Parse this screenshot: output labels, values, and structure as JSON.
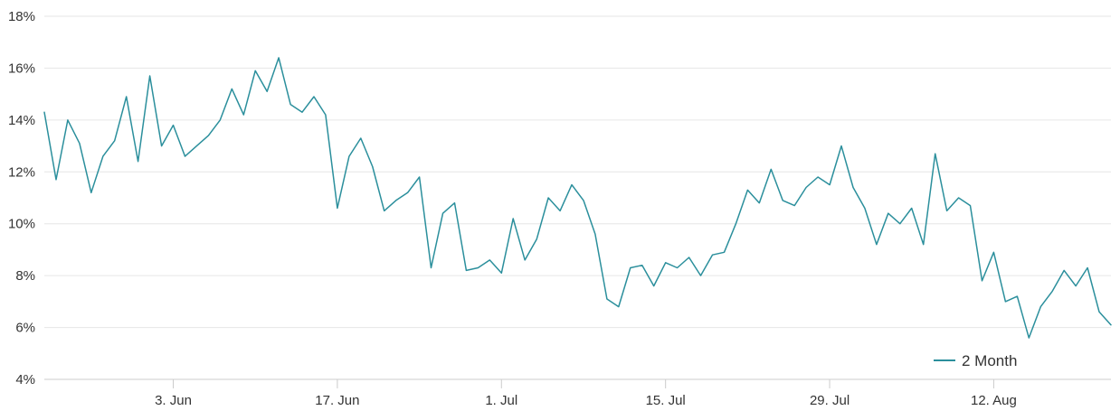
{
  "chart_data": {
    "type": "line",
    "title": "",
    "xlabel": "",
    "ylabel": "",
    "x_start": "2024-05-23",
    "x_end": "2024-08-22",
    "ylim": [
      4,
      18
    ],
    "y_ticks": [
      "4%",
      "6%",
      "8%",
      "10%",
      "12%",
      "14%",
      "16%",
      "18%"
    ],
    "x_ticks": [
      {
        "date": "2024-06-03",
        "label": "3. Jun"
      },
      {
        "date": "2024-06-17",
        "label": "17. Jun"
      },
      {
        "date": "2024-07-01",
        "label": "1. Jul"
      },
      {
        "date": "2024-07-15",
        "label": "15. Jul"
      },
      {
        "date": "2024-07-29",
        "label": "29. Jul"
      },
      {
        "date": "2024-08-12",
        "label": "12. Aug"
      }
    ],
    "grid": true,
    "legend_position": "bottom-right",
    "series": [
      {
        "name": "2 Month",
        "color": "#2b8f9c",
        "points": [
          [
            "2024-05-23",
            14.3
          ],
          [
            "2024-05-24",
            11.7
          ],
          [
            "2024-05-25",
            14.0
          ],
          [
            "2024-05-26",
            13.1
          ],
          [
            "2024-05-27",
            11.2
          ],
          [
            "2024-05-28",
            12.6
          ],
          [
            "2024-05-29",
            13.2
          ],
          [
            "2024-05-30",
            14.9
          ],
          [
            "2024-05-31",
            12.4
          ],
          [
            "2024-06-01",
            15.7
          ],
          [
            "2024-06-02",
            13.0
          ],
          [
            "2024-06-03",
            13.8
          ],
          [
            "2024-06-04",
            12.6
          ],
          [
            "2024-06-05",
            13.0
          ],
          [
            "2024-06-06",
            13.4
          ],
          [
            "2024-06-07",
            14.0
          ],
          [
            "2024-06-08",
            15.2
          ],
          [
            "2024-06-09",
            14.2
          ],
          [
            "2024-06-10",
            15.9
          ],
          [
            "2024-06-11",
            15.1
          ],
          [
            "2024-06-12",
            16.4
          ],
          [
            "2024-06-13",
            14.6
          ],
          [
            "2024-06-14",
            14.3
          ],
          [
            "2024-06-15",
            14.9
          ],
          [
            "2024-06-16",
            14.2
          ],
          [
            "2024-06-17",
            10.6
          ],
          [
            "2024-06-18",
            12.6
          ],
          [
            "2024-06-19",
            13.3
          ],
          [
            "2024-06-20",
            12.2
          ],
          [
            "2024-06-21",
            10.5
          ],
          [
            "2024-06-22",
            10.9
          ],
          [
            "2024-06-23",
            11.2
          ],
          [
            "2024-06-24",
            11.8
          ],
          [
            "2024-06-25",
            8.3
          ],
          [
            "2024-06-26",
            10.4
          ],
          [
            "2024-06-27",
            10.8
          ],
          [
            "2024-06-28",
            8.2
          ],
          [
            "2024-06-29",
            8.3
          ],
          [
            "2024-06-30",
            8.6
          ],
          [
            "2024-07-01",
            8.1
          ],
          [
            "2024-07-02",
            10.2
          ],
          [
            "2024-07-03",
            8.6
          ],
          [
            "2024-07-04",
            9.4
          ],
          [
            "2024-07-05",
            11.0
          ],
          [
            "2024-07-06",
            10.5
          ],
          [
            "2024-07-07",
            11.5
          ],
          [
            "2024-07-08",
            10.9
          ],
          [
            "2024-07-09",
            9.6
          ],
          [
            "2024-07-10",
            7.1
          ],
          [
            "2024-07-11",
            6.8
          ],
          [
            "2024-07-12",
            8.3
          ],
          [
            "2024-07-13",
            8.4
          ],
          [
            "2024-07-14",
            7.6
          ],
          [
            "2024-07-15",
            8.5
          ],
          [
            "2024-07-16",
            8.3
          ],
          [
            "2024-07-17",
            8.7
          ],
          [
            "2024-07-18",
            8.0
          ],
          [
            "2024-07-19",
            8.8
          ],
          [
            "2024-07-20",
            8.9
          ],
          [
            "2024-07-21",
            10.0
          ],
          [
            "2024-07-22",
            11.3
          ],
          [
            "2024-07-23",
            10.8
          ],
          [
            "2024-07-24",
            12.1
          ],
          [
            "2024-07-25",
            10.9
          ],
          [
            "2024-07-26",
            10.7
          ],
          [
            "2024-07-27",
            11.4
          ],
          [
            "2024-07-28",
            11.8
          ],
          [
            "2024-07-29",
            11.5
          ],
          [
            "2024-07-30",
            13.0
          ],
          [
            "2024-07-31",
            11.4
          ],
          [
            "2024-08-01",
            10.6
          ],
          [
            "2024-08-02",
            9.2
          ],
          [
            "2024-08-03",
            10.4
          ],
          [
            "2024-08-04",
            10.0
          ],
          [
            "2024-08-05",
            10.6
          ],
          [
            "2024-08-06",
            9.2
          ],
          [
            "2024-08-07",
            12.7
          ],
          [
            "2024-08-08",
            10.5
          ],
          [
            "2024-08-09",
            11.0
          ],
          [
            "2024-08-10",
            10.7
          ],
          [
            "2024-08-11",
            7.8
          ],
          [
            "2024-08-12",
            8.9
          ],
          [
            "2024-08-13",
            7.0
          ],
          [
            "2024-08-14",
            7.2
          ],
          [
            "2024-08-15",
            5.6
          ],
          [
            "2024-08-16",
            6.8
          ],
          [
            "2024-08-17",
            7.4
          ],
          [
            "2024-08-18",
            8.2
          ],
          [
            "2024-08-19",
            7.6
          ],
          [
            "2024-08-20",
            8.3
          ],
          [
            "2024-08-21",
            6.6
          ],
          [
            "2024-08-22",
            6.1
          ]
        ]
      }
    ]
  }
}
